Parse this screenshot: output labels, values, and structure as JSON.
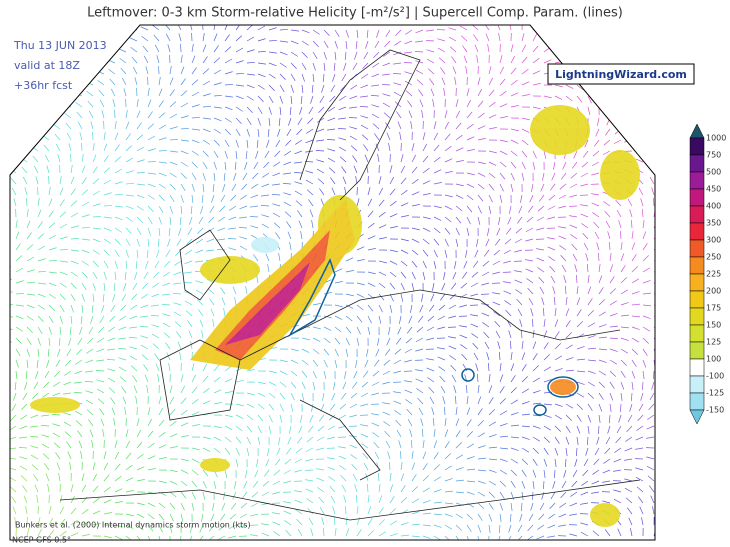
{
  "header": {
    "title": "Leftmover: 0-3 km Storm-relative Helicity [-m²/s²] | Supercell Comp. Param. (lines)",
    "date": "Thu 13 JUN 2013",
    "valid": "valid at 18Z",
    "forecast": "+36hr fcst"
  },
  "brand": "LightningWizard.com",
  "footer": {
    "note": "Bunkers et al. (2000) Internal dynamics storm motion (kts)",
    "model": "NCEP GFS 0.5°"
  },
  "colorbar": {
    "levels": [
      1000,
      750,
      500,
      450,
      400,
      350,
      300,
      250,
      225,
      200,
      175,
      150,
      125,
      100,
      -100,
      -125,
      -150
    ],
    "colors": [
      "#1d5468",
      "#3a0a62",
      "#6a1890",
      "#9a1c98",
      "#c0187c",
      "#d81c58",
      "#e8283a",
      "#f05a28",
      "#f58a20",
      "#f7b020",
      "#efc818",
      "#e2d820",
      "#d2e030",
      "#c6e040",
      "#ffffff",
      "#c8f0f8",
      "#a0e0f0",
      "#70c8e0"
    ]
  }
}
